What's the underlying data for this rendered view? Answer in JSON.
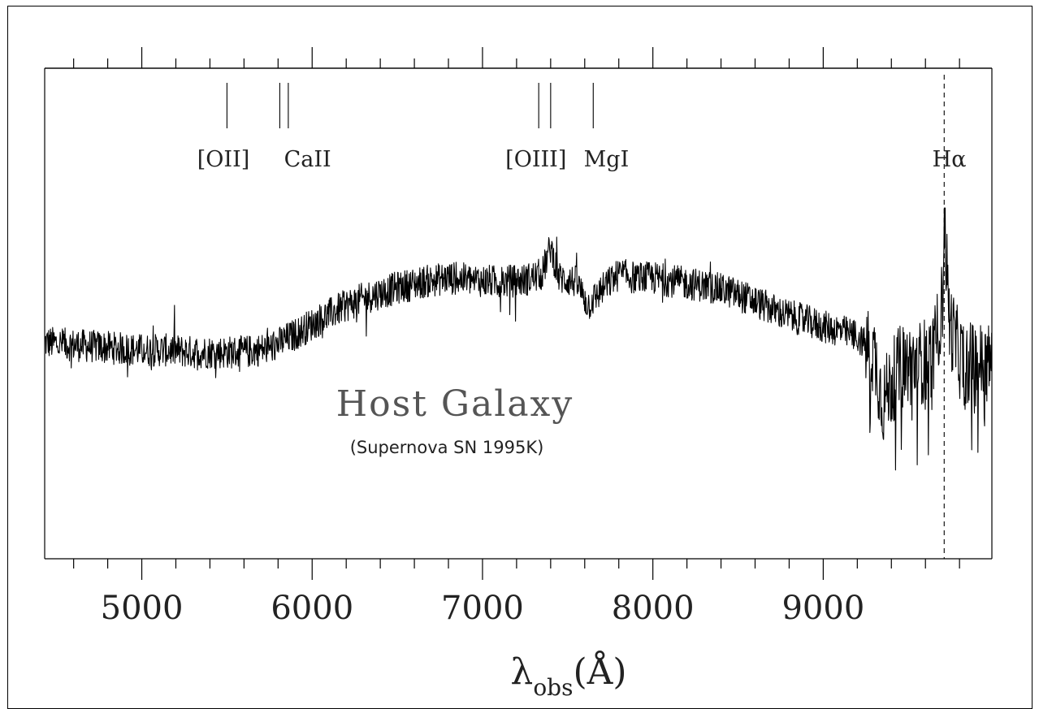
{
  "chart_data": {
    "type": "line",
    "title": "",
    "xlabel": "λ",
    "xlabel_subscript": "obs",
    "xlabel_unit": "(Å)",
    "ylabel": "",
    "xlim": [
      4430,
      9990
    ],
    "x_ticks": [
      5000,
      6000,
      7000,
      8000,
      9000
    ],
    "x_tick_labels": [
      "5000",
      "6000",
      "7000",
      "8000",
      "9000"
    ],
    "x_minor_step": 200,
    "y_ticks_shown": false,
    "grid": false,
    "annotation": {
      "title": "Host Galaxy",
      "subtitle": "(Supernova SN 1995K)"
    },
    "line_markers": [
      {
        "label": "[OII]",
        "lines": [
          5500
        ]
      },
      {
        "label": "CaII",
        "lines": [
          5810,
          5860
        ]
      },
      {
        "label": "[OIII]",
        "lines": [
          7330,
          7400
        ]
      },
      {
        "label": "MgI",
        "lines": [
          7650
        ]
      },
      {
        "label": "Hα",
        "lines": [
          9710
        ],
        "dashed": true
      }
    ],
    "series": [
      {
        "x": [
          4430,
          4550,
          4700,
          4850,
          5000,
          5150,
          5300,
          5450,
          5600,
          5750,
          5900,
          6050,
          6200,
          6350,
          6500,
          6650,
          6800,
          6950,
          7100,
          7250,
          7350,
          7400,
          7450,
          7550,
          7620,
          7700,
          7800,
          7900,
          8000,
          8150,
          8300,
          8450,
          8600,
          8750,
          8900,
          9000,
          9100,
          9200,
          9300,
          9350,
          9400,
          9450,
          9500,
          9550,
          9600,
          9650,
          9700,
          9710,
          9740,
          9800,
          9850,
          9900,
          9950,
          9990
        ],
        "y": [
          0.41,
          0.4,
          0.39,
          0.38,
          0.37,
          0.37,
          0.36,
          0.36,
          0.36,
          0.38,
          0.45,
          0.53,
          0.6,
          0.65,
          0.69,
          0.72,
          0.74,
          0.73,
          0.72,
          0.73,
          0.76,
          0.9,
          0.74,
          0.72,
          0.6,
          0.68,
          0.76,
          0.74,
          0.74,
          0.72,
          0.7,
          0.67,
          0.62,
          0.56,
          0.52,
          0.49,
          0.47,
          0.44,
          0.35,
          0.1,
          0.2,
          0.28,
          0.3,
          0.3,
          0.32,
          0.35,
          0.62,
          1.06,
          0.52,
          0.34,
          0.3,
          0.3,
          0.3,
          0.3
        ]
      }
    ]
  }
}
